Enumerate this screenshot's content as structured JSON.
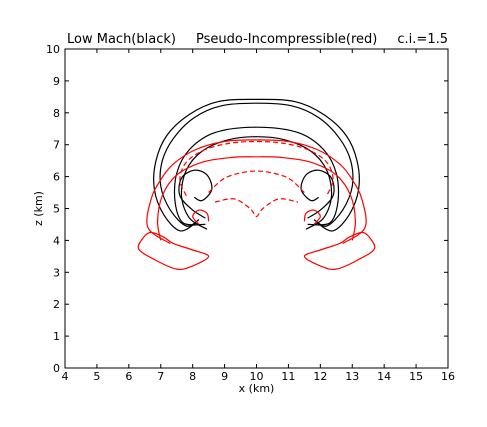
{
  "chart_data": {
    "type": "contour",
    "title_left": "Low Mach(black)",
    "title_center": "Pseudo-Incompressible(red)",
    "title_right": "c.i.=1.5",
    "xlabel": "x (km)",
    "ylabel": "z (km)",
    "xlim": [
      4,
      16
    ],
    "ylim": [
      0,
      10
    ],
    "xticks": [
      "4",
      "5",
      "6",
      "7",
      "8",
      "9",
      "10",
      "11",
      "12",
      "13",
      "14",
      "15",
      "16"
    ],
    "yticks": [
      "0",
      "1",
      "2",
      "3",
      "4",
      "5",
      "6",
      "7",
      "8",
      "9",
      "10"
    ],
    "grid": false,
    "series": [
      {
        "color": "#000000",
        "contours": [
          {
            "style": "solid",
            "points": [
              [
                8.1,
                4.55
              ],
              [
                7.6,
                4.3
              ],
              [
                7.1,
                4.8
              ],
              [
                6.8,
                5.6
              ],
              [
                6.85,
                6.5
              ],
              [
                7.2,
                7.3
              ],
              [
                7.9,
                7.95
              ],
              [
                8.8,
                8.35
              ],
              [
                10,
                8.42
              ],
              [
                11.2,
                8.35
              ],
              [
                12.1,
                7.95
              ],
              [
                12.8,
                7.3
              ],
              [
                13.15,
                6.5
              ],
              [
                13.2,
                5.6
              ],
              [
                12.9,
                4.8
              ],
              [
                12.4,
                4.3
              ],
              [
                11.9,
                4.55
              ]
            ]
          },
          {
            "style": "solid",
            "points": [
              [
                8.2,
                4.65
              ],
              [
                7.8,
                4.45
              ],
              [
                7.3,
                4.95
              ],
              [
                7.0,
                5.7
              ],
              [
                7.05,
                6.5
              ],
              [
                7.4,
                7.2
              ],
              [
                8.05,
                7.85
              ],
              [
                8.9,
                8.22
              ],
              [
                10,
                8.3
              ],
              [
                11.1,
                8.22
              ],
              [
                11.95,
                7.85
              ],
              [
                12.6,
                7.2
              ],
              [
                12.95,
                6.5
              ],
              [
                13.0,
                5.7
              ],
              [
                12.7,
                4.95
              ],
              [
                12.2,
                4.45
              ],
              [
                11.8,
                4.65
              ]
            ]
          },
          {
            "style": "solid",
            "points": [
              [
                8.4,
                4.5
              ],
              [
                7.7,
                4.55
              ],
              [
                7.45,
                5.2
              ],
              [
                7.5,
                6.1
              ],
              [
                7.9,
                6.85
              ],
              [
                8.7,
                7.38
              ],
              [
                10,
                7.55
              ],
              [
                11.3,
                7.38
              ],
              [
                12.1,
                6.85
              ],
              [
                12.5,
                6.1
              ],
              [
                12.55,
                5.2
              ],
              [
                12.3,
                4.55
              ],
              [
                11.6,
                4.5
              ]
            ]
          },
          {
            "style": "solid",
            "points": [
              [
                8.45,
                4.35
              ],
              [
                7.9,
                4.7
              ],
              [
                7.65,
                5.4
              ],
              [
                7.8,
                6.2
              ],
              [
                8.3,
                6.8
              ],
              [
                9.1,
                7.15
              ],
              [
                10,
                7.25
              ],
              [
                10.9,
                7.15
              ],
              [
                11.7,
                6.8
              ],
              [
                12.2,
                6.2
              ],
              [
                12.35,
                5.4
              ],
              [
                12.1,
                4.7
              ],
              [
                11.55,
                4.35
              ]
            ]
          },
          {
            "style": "solid",
            "points": [
              [
                8.4,
                4.7
              ],
              [
                8.0,
                4.95
              ],
              [
                7.6,
                5.4
              ],
              [
                7.65,
                5.95
              ],
              [
                8.05,
                6.2
              ],
              [
                8.45,
                6.05
              ],
              [
                8.6,
                5.6
              ],
              [
                8.3,
                5.25
              ],
              [
                8.05,
                5.35
              ]
            ]
          },
          {
            "style": "solid",
            "points": [
              [
                11.6,
                4.7
              ],
              [
                12.0,
                4.95
              ],
              [
                12.4,
                5.4
              ],
              [
                12.35,
                5.95
              ],
              [
                11.95,
                6.2
              ],
              [
                11.55,
                6.05
              ],
              [
                11.4,
                5.6
              ],
              [
                11.7,
                5.25
              ],
              [
                11.95,
                5.35
              ]
            ]
          }
        ]
      },
      {
        "color": "#ff0000",
        "contours": [
          {
            "style": "solid",
            "points": [
              [
                7.0,
                4.0
              ],
              [
                6.9,
                4.6
              ],
              [
                7.05,
                5.4
              ],
              [
                7.5,
                6.05
              ],
              [
                8.3,
                6.45
              ],
              [
                9.2,
                6.6
              ],
              [
                10,
                6.62
              ],
              [
                10.8,
                6.6
              ],
              [
                11.7,
                6.45
              ],
              [
                12.5,
                6.05
              ],
              [
                12.95,
                5.4
              ],
              [
                13.1,
                4.6
              ],
              [
                13.0,
                4.0
              ]
            ]
          },
          {
            "style": "solid",
            "points": [
              [
                7.3,
                3.9
              ],
              [
                6.6,
                4.4
              ],
              [
                6.7,
                5.3
              ],
              [
                7.0,
                5.9
              ],
              [
                7.4,
                6.4
              ],
              [
                8.1,
                6.85
              ],
              [
                9.0,
                7.1
              ],
              [
                10,
                7.15
              ],
              [
                11.0,
                7.1
              ],
              [
                11.9,
                6.85
              ],
              [
                12.6,
                6.4
              ],
              [
                13.0,
                5.9
              ],
              [
                13.3,
                5.3
              ],
              [
                13.4,
                4.4
              ],
              [
                12.7,
                3.9
              ]
            ]
          },
          {
            "style": "dashed",
            "points": [
              [
                7.8,
                5.4
              ],
              [
                7.6,
                5.9
              ],
              [
                7.8,
                6.45
              ],
              [
                8.4,
                6.85
              ],
              [
                9.2,
                7.05
              ],
              [
                10,
                7.1
              ],
              [
                10.8,
                7.05
              ],
              [
                11.6,
                6.85
              ],
              [
                12.2,
                6.45
              ],
              [
                12.4,
                5.9
              ],
              [
                12.2,
                5.4
              ]
            ]
          },
          {
            "style": "dashed",
            "points": [
              [
                8.5,
                5.5
              ],
              [
                9.0,
                5.95
              ],
              [
                9.7,
                6.15
              ],
              [
                10.3,
                6.15
              ],
              [
                11.0,
                5.95
              ],
              [
                11.5,
                5.5
              ]
            ]
          },
          {
            "style": "dashed",
            "points": [
              [
                8.7,
                5.2
              ],
              [
                9.3,
                5.3
              ],
              [
                9.8,
                5.0
              ],
              [
                10,
                4.75
              ],
              [
                10.2,
                5.0
              ],
              [
                10.7,
                5.3
              ],
              [
                11.3,
                5.2
              ]
            ]
          },
          {
            "style": "solid",
            "points": [
              [
                6.5,
                4.15
              ],
              [
                6.3,
                3.75
              ],
              [
                6.8,
                3.4
              ],
              [
                7.5,
                3.1
              ],
              [
                8.0,
                3.2
              ],
              [
                8.5,
                3.5
              ],
              [
                8.0,
                3.7
              ],
              [
                7.4,
                3.9
              ],
              [
                7.1,
                4.1
              ],
              [
                6.7,
                4.25
              ],
              [
                6.5,
                4.15
              ]
            ]
          },
          {
            "style": "solid",
            "points": [
              [
                13.5,
                4.15
              ],
              [
                13.7,
                3.75
              ],
              [
                13.2,
                3.4
              ],
              [
                12.5,
                3.1
              ],
              [
                12.0,
                3.2
              ],
              [
                11.5,
                3.5
              ],
              [
                12.0,
                3.7
              ],
              [
                12.6,
                3.9
              ],
              [
                12.9,
                4.1
              ],
              [
                13.3,
                4.25
              ],
              [
                13.5,
                4.15
              ]
            ]
          },
          {
            "style": "solid",
            "points": [
              [
                8.2,
                4.5
              ],
              [
                8.0,
                4.75
              ],
              [
                8.2,
                4.95
              ],
              [
                8.45,
                4.85
              ],
              [
                8.5,
                4.6
              ]
            ]
          },
          {
            "style": "solid",
            "points": [
              [
                11.8,
                4.5
              ],
              [
                12.0,
                4.75
              ],
              [
                11.8,
                4.95
              ],
              [
                11.55,
                4.85
              ],
              [
                11.5,
                4.6
              ]
            ]
          }
        ]
      }
    ]
  }
}
